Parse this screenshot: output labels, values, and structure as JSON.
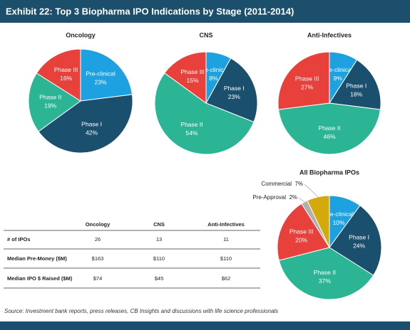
{
  "title": "Exhibit 22: Top 3 Biopharma IPO Indications by Stage (2011-2014)",
  "chart_data": [
    {
      "type": "pie",
      "title": "Oncology",
      "categories": [
        "Pre-clinical",
        "Phase I",
        "Phase II",
        "Phase III"
      ],
      "values": [
        23,
        42,
        19,
        16
      ],
      "value_labels": [
        "23%",
        "42%",
        "19%",
        "16%"
      ],
      "colors": [
        "#1ea1e0",
        "#1b4f6e",
        "#2bb594",
        "#e8413c"
      ]
    },
    {
      "type": "pie",
      "title": "CNS",
      "categories": [
        "Pre-clinical",
        "Phase I",
        "Phase II",
        "Phase III"
      ],
      "values": [
        8,
        23,
        54,
        15
      ],
      "value_labels": [
        "8%",
        "23%",
        "54%",
        "15%"
      ],
      "colors": [
        "#1ea1e0",
        "#1b4f6e",
        "#2bb594",
        "#e8413c"
      ]
    },
    {
      "type": "pie",
      "title": "Anti-Infectives",
      "categories": [
        "Pre-clinical",
        "Phase I",
        "Phase II",
        "Phase III"
      ],
      "values": [
        9,
        18,
        46,
        27
      ],
      "value_labels": [
        "9%",
        "18%",
        "46%",
        "27%"
      ],
      "colors": [
        "#1ea1e0",
        "#1b4f6e",
        "#2bb594",
        "#e8413c"
      ]
    },
    {
      "type": "pie",
      "title": "All Biopharma IPOs",
      "categories": [
        "Pre-clinical",
        "Phase I",
        "Phase II",
        "Phase III",
        "Pre-Approval",
        "Commercial"
      ],
      "values": [
        10,
        24,
        37,
        20,
        2,
        7
      ],
      "value_labels": [
        "10%",
        "24%",
        "37%",
        "20%",
        "2%",
        "7%"
      ],
      "colors": [
        "#1ea1e0",
        "#1b4f6e",
        "#2bb594",
        "#e8413c",
        "#b0b0b0",
        "#d4a90c"
      ]
    }
  ],
  "table": {
    "columns": [
      "Oncology",
      "CNS",
      "Anti-Infectives"
    ],
    "rows": [
      [
        "# of IPOs",
        "26",
        "13",
        "11"
      ],
      [
        "Median Pre-Money ($M)",
        "$163",
        "$110",
        "$110"
      ],
      [
        "Median IPO $ Raised ($M)",
        "$74",
        "$45",
        "$62"
      ]
    ]
  },
  "source": "Source: Investment bank reports, press releases, CB Insights and discussions with life science professionals"
}
